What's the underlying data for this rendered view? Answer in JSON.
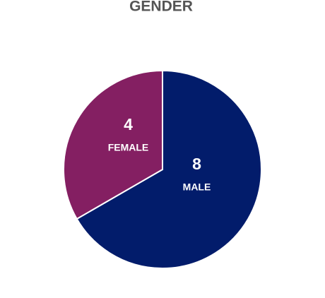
{
  "chart_data": {
    "type": "pie",
    "title": "GENDER",
    "categories": [
      "MALE",
      "FEMALE"
    ],
    "values": [
      8,
      4
    ],
    "colors": [
      "#021c6b",
      "#841f62"
    ]
  }
}
